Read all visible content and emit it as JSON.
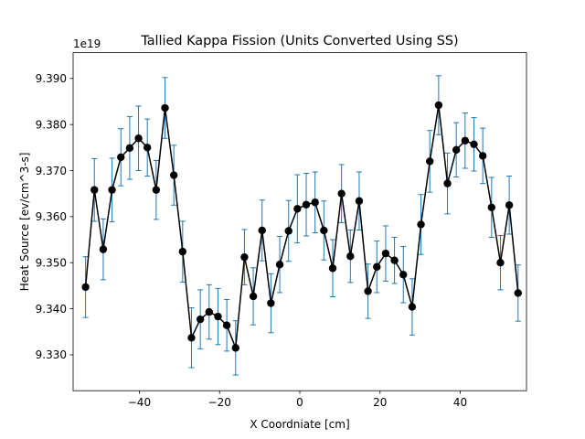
{
  "chart_data": {
    "type": "line",
    "title": "Tallied Kappa Fission (Units Converted Using SS)",
    "xlabel": "X Coordniate [cm]",
    "ylabel": "Heat Source [ev/cm^3-s]",
    "offset_text": "1e19",
    "scale": 1e+19,
    "xlim": [
      -56.5,
      56.5
    ],
    "ylim": [
      9.3222,
      9.3956
    ],
    "x_ticks": [
      -40,
      -20,
      0,
      20,
      40
    ],
    "x_tick_labels": [
      "−40",
      "−20",
      "0",
      "20",
      "40"
    ],
    "y_ticks": [
      9.33,
      9.34,
      9.35,
      9.36,
      9.37,
      9.38,
      9.39
    ],
    "y_tick_labels": [
      "9.330",
      "9.340",
      "9.350",
      "9.360",
      "9.370",
      "9.380",
      "9.390"
    ],
    "grid": false,
    "legend": "none",
    "colors": {
      "line": "#000000",
      "marker": "#000000",
      "errorbar": "#1f77b4"
    },
    "series": [
      {
        "x": [
          -53.4,
          -51.2,
          -49.0,
          -46.8,
          -44.6,
          -42.4,
          -40.2,
          -38.0,
          -35.8,
          -33.6,
          -31.4,
          -29.2,
          -27.0,
          -24.8,
          -22.6,
          -20.4,
          -18.2,
          -16.0,
          -13.8,
          -11.6,
          -9.4,
          -7.2,
          -5.0,
          -2.8,
          -0.6,
          1.6,
          3.8,
          6.0,
          8.2,
          10.4,
          12.6,
          14.8,
          17.0,
          19.2,
          21.4,
          23.6,
          25.8,
          28.0,
          30.2,
          32.4,
          34.6,
          36.8,
          39.0,
          41.2,
          43.4,
          45.6,
          47.8,
          50.0,
          52.2,
          54.4
        ],
        "y": [
          9.3447,
          9.3658,
          9.3529,
          9.3658,
          9.3729,
          9.3749,
          9.377,
          9.375,
          9.3658,
          9.3836,
          9.369,
          9.3524,
          9.3337,
          9.3377,
          9.3393,
          9.3383,
          9.3364,
          9.3315,
          9.3512,
          9.3427,
          9.357,
          9.3412,
          9.3496,
          9.3569,
          9.3617,
          9.3626,
          9.3631,
          9.357,
          9.3488,
          9.365,
          9.3514,
          9.3634,
          9.3438,
          9.3491,
          9.352,
          9.3505,
          9.3474,
          9.3404,
          9.3583,
          9.372,
          9.3842,
          9.3672,
          9.3745,
          9.3765,
          9.3757,
          9.3732,
          9.362,
          9.35,
          9.3625,
          9.3434
        ],
        "yerr": [
          0.0066,
          0.0068,
          0.0066,
          0.0069,
          0.0062,
          0.0068,
          0.007,
          0.0062,
          0.0064,
          0.0066,
          0.0065,
          0.0066,
          0.0065,
          0.0064,
          0.0059,
          0.0061,
          0.0056,
          0.0059,
          0.006,
          0.0062,
          0.0066,
          0.0064,
          0.0061,
          0.0066,
          0.0074,
          0.0068,
          0.0066,
          0.0064,
          0.0062,
          0.0063,
          0.0057,
          0.0063,
          0.0059,
          0.0056,
          0.006,
          0.005,
          0.0061,
          0.0061,
          0.0065,
          0.0067,
          0.0064,
          0.0066,
          0.0059,
          0.006,
          0.0058,
          0.006,
          0.0065,
          0.0059,
          0.0063,
          0.0061
        ]
      }
    ]
  }
}
